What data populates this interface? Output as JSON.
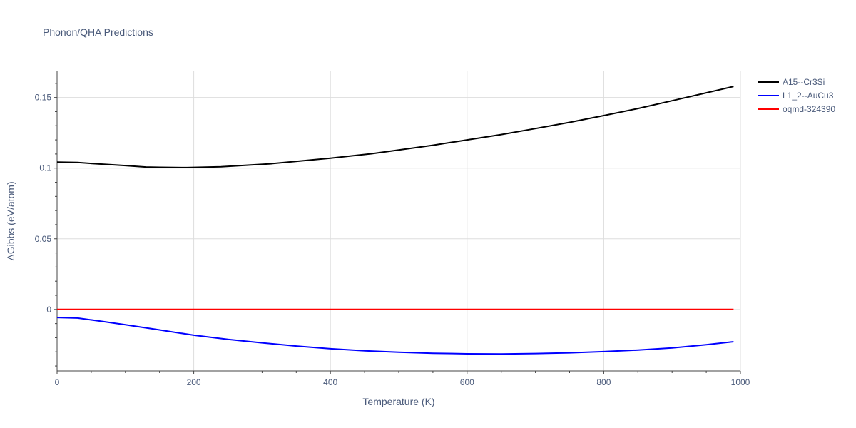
{
  "chart_data": {
    "type": "line",
    "title": "Phonon/QHA Predictions",
    "xlabel": "Temperature (K)",
    "ylabel": "ΔGibbs (eV/atom)",
    "xlim": [
      0,
      1000
    ],
    "ylim": [
      -0.0435,
      0.1685
    ],
    "x_ticks": [
      0,
      200,
      400,
      600,
      800,
      1000
    ],
    "y_ticks": [
      0,
      0.05,
      0.1,
      0.15
    ],
    "x_tick_labels": [
      "0",
      "200",
      "400",
      "600",
      "800",
      "1000"
    ],
    "y_tick_labels": [
      "0",
      "0.05",
      "0.1",
      "0.15"
    ],
    "grid": true,
    "legend_position": "top-right",
    "series": [
      {
        "name": "A15--Cr3Si",
        "color": "#000000",
        "x": [
          0,
          30,
          60,
          100,
          130,
          150,
          190,
          240,
          310,
          400,
          460,
          500,
          550,
          600,
          650,
          700,
          750,
          800,
          850,
          900,
          950,
          990
        ],
        "y": [
          0.1043,
          0.104,
          0.103,
          0.1018,
          0.1008,
          0.1006,
          0.1004,
          0.101,
          0.103,
          0.107,
          0.1102,
          0.1128,
          0.1162,
          0.12,
          0.1238,
          0.128,
          0.1324,
          0.1372,
          0.1422,
          0.1477,
          0.1533,
          0.1578
        ]
      },
      {
        "name": "L1_2--AuCu3",
        "color": "#0000ff",
        "x": [
          0,
          30,
          60,
          100,
          150,
          200,
          250,
          300,
          350,
          400,
          450,
          500,
          550,
          600,
          650,
          700,
          750,
          800,
          850,
          900,
          950,
          990
        ],
        "y": [
          -0.0057,
          -0.0061,
          -0.008,
          -0.0108,
          -0.0145,
          -0.0182,
          -0.0212,
          -0.0236,
          -0.0259,
          -0.0278,
          -0.0292,
          -0.0303,
          -0.031,
          -0.0314,
          -0.0315,
          -0.0312,
          -0.0307,
          -0.0298,
          -0.0287,
          -0.0272,
          -0.025,
          -0.0228
        ]
      },
      {
        "name": "oqmd-324390",
        "color": "#ff0000",
        "x": [
          0,
          990
        ],
        "y": [
          0,
          0
        ]
      }
    ]
  }
}
